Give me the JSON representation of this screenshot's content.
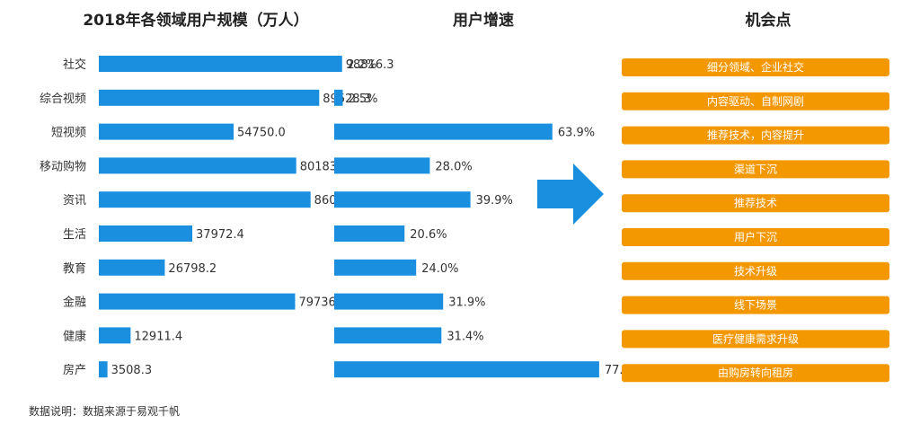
{
  "chart_data": [
    {
      "type": "bar",
      "title": "2018年各领域用户规模（万人）",
      "categories": [
        "社交",
        "综合视频",
        "短视频",
        "移动购物",
        "资讯",
        "生活",
        "教育",
        "金融",
        "健康",
        "房产"
      ],
      "values": [
        98816.3,
        89528.3,
        54750.0,
        80183.8,
        86016.5,
        37972.4,
        26798.2,
        79736.4,
        12911.4,
        3508.3
      ],
      "value_labels": [
        "98816.3",
        "89528.3",
        "54750.0",
        "80183.8",
        "86016.5",
        "37972.4",
        "26798.2",
        "79736.4",
        "12911.4",
        "3508.3"
      ],
      "orientation": "horizontal",
      "xlim": [
        0,
        100000
      ],
      "color": "#1a8fe0"
    },
    {
      "type": "bar",
      "title": "用户增速",
      "categories": [
        "社交",
        "综合视频",
        "短视频",
        "移动购物",
        "资讯",
        "生活",
        "教育",
        "金融",
        "健康",
        "房产"
      ],
      "values": [
        2.2,
        2.5,
        63.9,
        28.0,
        39.9,
        20.6,
        24.0,
        31.9,
        31.4,
        77.6
      ],
      "value_labels": [
        "2.2%",
        "2.5%",
        "63.9%",
        "28.0%",
        "39.9%",
        "20.6%",
        "24.0%",
        "31.9%",
        "31.4%",
        "77.6%"
      ],
      "orientation": "horizontal",
      "xlim": [
        0,
        80
      ],
      "color": "#1a8fe0"
    }
  ],
  "opportunities": {
    "title": "机会点",
    "items": [
      "细分领域、企业社交",
      "内容驱动、自制网剧",
      "推荐技术，内容提升",
      "渠道下沉",
      "推荐技术",
      "用户下沉",
      "技术升级",
      "线下场景",
      "医疗健康需求升级",
      "由购房转向租房"
    ],
    "color": "#f39800"
  },
  "arrow_color": "#1a8fe0",
  "source_note": "数据说明：数据来源于易观千帆"
}
